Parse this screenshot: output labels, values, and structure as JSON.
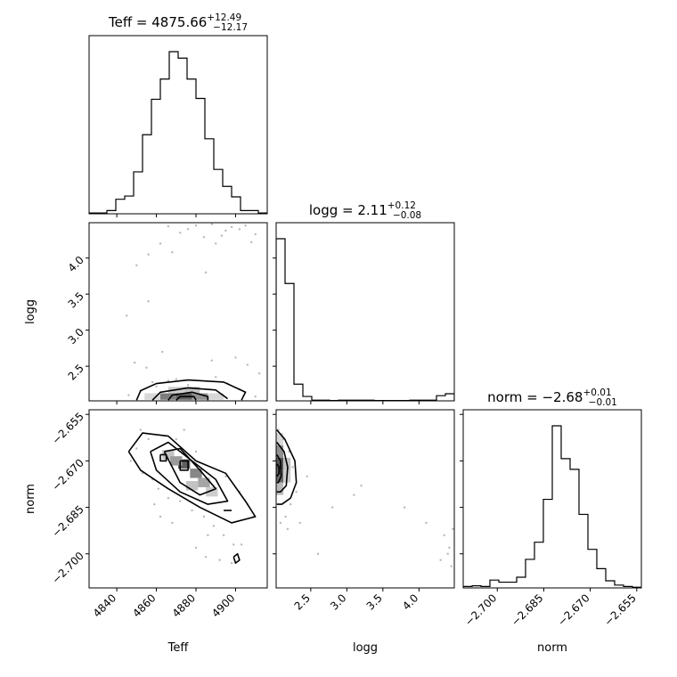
{
  "chart_data": {
    "type": "corner",
    "parameters": [
      "Teff",
      "logg",
      "norm"
    ],
    "titles": [
      {
        "param": "Teff",
        "text": "Teff = 4875.66",
        "plus": "+12.49",
        "minus": "−12.17"
      },
      {
        "param": "logg",
        "text": "logg = 2.11",
        "plus": "+0.12",
        "minus": "−0.08"
      },
      {
        "param": "norm",
        "text": "norm = −2.68",
        "plus": "+0.01",
        "minus": "−0.01"
      }
    ],
    "axis_labels": {
      "x": [
        "Teff",
        "logg",
        "norm"
      ],
      "y": [
        "logg",
        "norm"
      ]
    },
    "ranges": {
      "Teff": [
        4826,
        4916
      ],
      "logg": [
        2.02,
        4.49
      ],
      "norm": [
        -2.711,
        -2.6535
      ]
    },
    "ticks": {
      "Teff": [
        {
          "v": 4840,
          "label": "4840"
        },
        {
          "v": 4860,
          "label": "4860"
        },
        {
          "v": 4880,
          "label": "4880"
        },
        {
          "v": 4900,
          "label": "4900"
        }
      ],
      "logg": [
        {
          "v": 2.5,
          "label": "2.5"
        },
        {
          "v": 3.0,
          "label": "3.0"
        },
        {
          "v": 3.5,
          "label": "3.5"
        },
        {
          "v": 4.0,
          "label": "4.0"
        }
      ],
      "norm": [
        {
          "v": -2.7,
          "label": "−2.700"
        },
        {
          "v": -2.685,
          "label": "−2.685"
        },
        {
          "v": -2.67,
          "label": "−2.670"
        },
        {
          "v": -2.655,
          "label": "−2.655"
        }
      ]
    },
    "histograms": {
      "Teff": {
        "edges": [
          4826,
          4830.5,
          4835,
          4839.5,
          4844,
          4848.5,
          4853,
          4857.5,
          4862,
          4866.5,
          4871,
          4875.5,
          4880,
          4884.5,
          4889,
          4893.5,
          4898,
          4902.5,
          4907,
          4911.5,
          4916
        ],
        "counts": [
          1,
          1,
          4,
          18,
          22,
          52,
          98,
          142,
          167,
          201,
          193,
          167,
          143,
          93,
          55,
          34,
          21,
          4,
          4,
          1
        ]
      },
      "logg": {
        "edges": [
          2.02,
          2.1435,
          2.267,
          2.3905,
          2.514,
          2.6375,
          2.761,
          2.8845,
          3.008,
          3.1315,
          3.255,
          3.3785,
          3.502,
          3.6255,
          3.749,
          3.8725,
          3.996,
          4.1195,
          4.243,
          4.3665,
          4.49
        ],
        "counts": [
          1000,
          724,
          103,
          27,
          4,
          4,
          2,
          4,
          4,
          4,
          4,
          2,
          2,
          2,
          2,
          4,
          4,
          4,
          32,
          44
        ]
      },
      "norm": {
        "edges": [
          -2.711,
          -2.70813,
          -2.70525,
          -2.70238,
          -2.6995,
          -2.69663,
          -2.69375,
          -2.69088,
          -2.688,
          -2.68513,
          -2.68225,
          -2.67938,
          -2.6765,
          -2.67363,
          -2.67075,
          -2.66788,
          -2.665,
          -2.66213,
          -2.65925,
          -2.65638,
          -2.6535
        ],
        "counts": [
          2,
          3,
          2,
          11,
          8,
          8,
          15,
          40,
          64,
          124,
          227,
          181,
          166,
          103,
          54,
          27,
          10,
          4,
          2,
          1
        ]
      }
    },
    "scatter": {
      "logg_vs_Teff": {
        "points": [
          [
            4898,
            4.43
          ],
          [
            4895,
            4.38
          ],
          [
            4905,
            4.45
          ],
          [
            4902,
            4.4
          ],
          [
            4910,
            4.33
          ],
          [
            4884,
            4.29
          ],
          [
            4880,
            4.45
          ],
          [
            4876,
            4.4
          ],
          [
            4866,
            4.44
          ],
          [
            4862,
            4.2
          ],
          [
            4856,
            4.05
          ],
          [
            4850,
            3.9
          ],
          [
            4890,
            4.2
          ],
          [
            4908,
            4.22
          ],
          [
            4872,
            4.35
          ],
          [
            4868,
            4.08
          ],
          [
            4888,
            4.47
          ],
          [
            4893,
            4.31
          ],
          [
            4856,
            3.4
          ],
          [
            4845,
            3.2
          ],
          [
            4885,
            3.8
          ],
          [
            4863,
            2.7
          ],
          [
            4849,
            2.55
          ],
          [
            4906,
            2.52
          ],
          [
            4900,
            2.62
          ],
          [
            4888,
            2.58
          ],
          [
            4855,
            2.48
          ],
          [
            4912,
            2.4
          ],
          [
            4870,
            2.32
          ],
          [
            4858,
            2.28
          ],
          [
            4896,
            2.26
          ],
          [
            4876,
            2.24
          ],
          [
            4880,
            2.2
          ],
          [
            4866,
            2.3
          ],
          [
            4890,
            2.35
          ],
          [
            4860,
            2.22
          ],
          [
            4902,
            2.18
          ],
          [
            4852,
            2.15
          ],
          [
            4846,
            2.1
          ],
          [
            4910,
            2.08
          ]
        ],
        "density": [
          {
            "x": 4866,
            "y": 2.08,
            "shade": 0.65
          },
          {
            "x": 4874,
            "y": 2.08,
            "shade": 0.8
          },
          {
            "x": 4882,
            "y": 2.08,
            "shade": 0.55
          },
          {
            "x": 4858,
            "y": 2.08,
            "shade": 0.2
          },
          {
            "x": 4890,
            "y": 2.08,
            "shade": 0.2
          },
          {
            "x": 4870,
            "y": 2.17,
            "shade": 0.25
          },
          {
            "x": 4878,
            "y": 2.17,
            "shade": 0.3
          }
        ],
        "contours": [
          [
            [
              4850,
              2.03
            ],
            [
              4852,
              2.16
            ],
            [
              4860,
              2.26
            ],
            [
              4876,
              2.31
            ],
            [
              4894,
              2.28
            ],
            [
              4905,
              2.14
            ],
            [
              4903,
              2.03
            ]
          ],
          [
            [
              4858,
              2.03
            ],
            [
              4862,
              2.14
            ],
            [
              4876,
              2.2
            ],
            [
              4890,
              2.17
            ],
            [
              4896,
              2.05
            ]
          ],
          [
            [
              4866,
              2.03
            ],
            [
              4868,
              2.1
            ],
            [
              4878,
              2.14
            ],
            [
              4886,
              2.08
            ],
            [
              4886,
              2.03
            ]
          ],
          [
            [
              4870,
              2.03
            ],
            [
              4872,
              2.08
            ],
            [
              4879,
              2.08
            ],
            [
              4880,
              2.03
            ]
          ]
        ]
      },
      "norm_vs_Teff": {
        "points": [
          [
            4852,
            -2.66
          ],
          [
            4856,
            -2.663
          ],
          [
            4850,
            -2.666
          ],
          [
            4847,
            -2.67
          ],
          [
            4853,
            -2.674
          ],
          [
            4858,
            -2.676
          ],
          [
            4861,
            -2.679
          ],
          [
            4866,
            -2.682
          ],
          [
            4872,
            -2.683
          ],
          [
            4878,
            -2.686
          ],
          [
            4884,
            -2.688
          ],
          [
            4889,
            -2.691
          ],
          [
            4894,
            -2.694
          ],
          [
            4899,
            -2.697
          ],
          [
            4898,
            -2.703
          ],
          [
            4874,
            -2.66
          ],
          [
            4870,
            -2.663
          ],
          [
            4880,
            -2.667
          ],
          [
            4895,
            -2.675
          ],
          [
            4902,
            -2.68
          ],
          [
            4906,
            -2.684
          ],
          [
            4886,
            -2.694
          ],
          [
            4880,
            -2.698
          ],
          [
            4868,
            -2.69
          ],
          [
            4892,
            -2.702
          ],
          [
            4903,
            -2.697
          ],
          [
            4859,
            -2.684
          ],
          [
            4862,
            -2.688
          ],
          [
            4909,
            -2.688
          ],
          [
            4885,
            -2.701
          ]
        ],
        "density": [
          {
            "x": 4866,
            "y": -2.668,
            "shade": 0.3
          },
          {
            "x": 4874,
            "y": -2.671,
            "shade": 0.8
          },
          {
            "x": 4880,
            "y": -2.674,
            "shade": 0.6
          },
          {
            "x": 4884,
            "y": -2.677,
            "shade": 0.45
          },
          {
            "x": 4870,
            "y": -2.67,
            "shade": 0.5
          },
          {
            "x": 4888,
            "y": -2.68,
            "shade": 0.25
          },
          {
            "x": 4878,
            "y": -2.678,
            "shade": 0.3
          }
        ],
        "contours": [
          [
            [
              4846,
              -2.667
            ],
            [
              4853,
              -2.661
            ],
            [
              4866,
              -2.662
            ],
            [
              4880,
              -2.67
            ],
            [
              4895,
              -2.674
            ],
            [
              4905,
              -2.683
            ],
            [
              4910,
              -2.688
            ],
            [
              4898,
              -2.69
            ],
            [
              4882,
              -2.685
            ],
            [
              4866,
              -2.679
            ],
            [
              4852,
              -2.673
            ],
            [
              4846,
              -2.667
            ]
          ],
          [
            [
              4857,
              -2.667
            ],
            [
              4866,
              -2.664
            ],
            [
              4878,
              -2.67
            ],
            [
              4890,
              -2.676
            ],
            [
              4896,
              -2.683
            ],
            [
              4886,
              -2.684
            ],
            [
              4872,
              -2.68
            ],
            [
              4860,
              -2.673
            ],
            [
              4857,
              -2.667
            ]
          ],
          [
            [
              4864,
              -2.667
            ],
            [
              4872,
              -2.666
            ],
            [
              4882,
              -2.673
            ],
            [
              4890,
              -2.679
            ],
            [
              4882,
              -2.681
            ],
            [
              4872,
              -2.677
            ],
            [
              4864,
              -2.667
            ]
          ],
          [
            [
              4872,
              -2.67
            ],
            [
              4876,
              -2.67
            ],
            [
              4876,
              -2.673
            ],
            [
              4872,
              -2.673
            ],
            [
              4872,
              -2.67
            ]
          ],
          [
            [
              4894,
              -2.686
            ],
            [
              4898,
              -2.686
            ]
          ],
          [
            [
              4899,
              -2.701
            ],
            [
              4901,
              -2.7
            ],
            [
              4902,
              -2.702
            ],
            [
              4900,
              -2.703
            ],
            [
              4899,
              -2.701
            ]
          ],
          [
            [
              4862,
              -2.668
            ],
            [
              4865,
              -2.668
            ],
            [
              4865,
              -2.67
            ],
            [
              4862,
              -2.67
            ],
            [
              4862,
              -2.668
            ]
          ]
        ]
      },
      "norm_vs_logg": {
        "points": [
          [
            2.05,
            -2.66
          ],
          [
            2.12,
            -2.663
          ],
          [
            2.2,
            -2.667
          ],
          [
            2.25,
            -2.672
          ],
          [
            2.22,
            -2.684
          ],
          [
            2.3,
            -2.68
          ],
          [
            2.15,
            -2.688
          ],
          [
            2.08,
            -2.69
          ],
          [
            2.18,
            -2.692
          ],
          [
            2.35,
            -2.69
          ],
          [
            2.45,
            -2.675
          ],
          [
            2.6,
            -2.7
          ],
          [
            2.8,
            -2.685
          ],
          [
            3.1,
            -2.681
          ],
          [
            3.2,
            -2.678
          ],
          [
            3.8,
            -2.685
          ],
          [
            4.1,
            -2.69
          ],
          [
            4.35,
            -2.694
          ],
          [
            4.42,
            -2.698
          ],
          [
            4.45,
            -2.704
          ],
          [
            4.4,
            -2.7
          ],
          [
            4.3,
            -2.702
          ],
          [
            4.47,
            -2.692
          ]
        ],
        "density": [
          {
            "x": 2.07,
            "y": -2.667,
            "shade": 0.55
          },
          {
            "x": 2.07,
            "y": -2.671,
            "shade": 0.85
          },
          {
            "x": 2.07,
            "y": -2.675,
            "shade": 0.75
          },
          {
            "x": 2.07,
            "y": -2.679,
            "shade": 0.35
          },
          {
            "x": 2.17,
            "y": -2.671,
            "shade": 0.3
          },
          {
            "x": 2.17,
            "y": -2.675,
            "shade": 0.25
          },
          {
            "x": 2.07,
            "y": -2.663,
            "shade": 0.2
          }
        ],
        "contours": [
          [
            [
              2.03,
              -2.66
            ],
            [
              2.14,
              -2.663
            ],
            [
              2.28,
              -2.67
            ],
            [
              2.3,
              -2.677
            ],
            [
              2.22,
              -2.682
            ],
            [
              2.1,
              -2.684
            ],
            [
              2.03,
              -2.684
            ]
          ],
          [
            [
              2.03,
              -2.664
            ],
            [
              2.13,
              -2.667
            ],
            [
              2.18,
              -2.672
            ],
            [
              2.16,
              -2.678
            ],
            [
              2.08,
              -2.68
            ],
            [
              2.03,
              -2.68
            ]
          ],
          [
            [
              2.03,
              -2.668
            ],
            [
              2.08,
              -2.67
            ],
            [
              2.09,
              -2.675
            ],
            [
              2.05,
              -2.677
            ],
            [
              2.03,
              -2.677
            ]
          ],
          [
            [
              2.03,
              -2.671
            ],
            [
              2.06,
              -2.672
            ],
            [
              2.06,
              -2.674
            ],
            [
              2.03,
              -2.675
            ]
          ]
        ]
      }
    }
  }
}
